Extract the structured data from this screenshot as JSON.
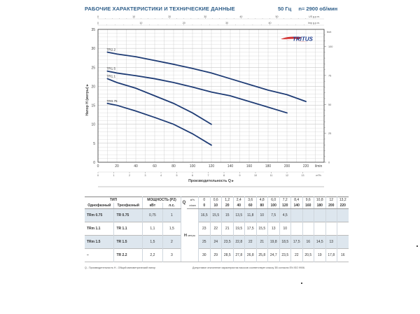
{
  "header": {
    "title": "РАБОЧИЕ ХАРАКТЕРИСТИКИ И ТЕХНИЧЕСКИЕ ДАННЫЕ",
    "frequency": "50 Гц",
    "speed": "n= 2900 об/мин"
  },
  "brand": {
    "logo_text": "TRITUS",
    "logo_color": "#1f3f8f",
    "swoosh_color": "#d32f2f"
  },
  "colors": {
    "curve": "#1f3c75",
    "title": "#2f5f8a",
    "grid": "#c8c8c8",
    "row_shade": "#dde6ee"
  },
  "axes": {
    "y_label": "Напор H (метры) ▸",
    "x_label": "Производительность Q ▸",
    "x_unit_primary": "l/min",
    "x_unit_secondary": "m³/h",
    "top_unit_us": "US g.p.m.",
    "top_unit_imp": "Imp g.p.m.",
    "right_unit": "feet",
    "y_ticks": [
      "0",
      "5",
      "10",
      "15",
      "20",
      "25",
      "30",
      "35"
    ],
    "x_ticks": [
      "0",
      "20",
      "40",
      "60",
      "80",
      "100",
      "120",
      "140",
      "160",
      "180",
      "200",
      "220"
    ],
    "m3h_ticks": [
      "0",
      "1",
      "2",
      "3",
      "4",
      "5",
      "6",
      "7",
      "8",
      "9",
      "10",
      "11",
      "12",
      "13"
    ],
    "us_gpm_ticks": [
      "0",
      "10",
      "20",
      "30",
      "40",
      "50"
    ],
    "imp_gpm_ticks": [
      "0",
      "10",
      "20",
      "30",
      "40"
    ],
    "feet_ticks": [
      "0",
      "25",
      "50",
      "75",
      "100"
    ],
    "right_bottom_tick": "0"
  },
  "chart_data": {
    "type": "line",
    "title": "РАБОЧИЕ ХАРАКТЕРИСТИКИ И ТЕХНИЧЕСКИЕ ДАННЫЕ",
    "subtitle": "50 Гц  n= 2900 об/мин",
    "xlabel": "Производительность Q (l/min)",
    "ylabel": "Напор H (метры)",
    "xlim": [
      0,
      240
    ],
    "ylim": [
      0,
      35
    ],
    "grid": true,
    "series": [
      {
        "name": "TR0.75",
        "x": [
          10,
          20,
          40,
          60,
          80,
          100,
          120
        ],
        "y": [
          15.5,
          15,
          13.5,
          11.8,
          10,
          7.5,
          4.5
        ]
      },
      {
        "name": "TR1.1",
        "x": [
          10,
          20,
          40,
          60,
          80,
          100,
          120
        ],
        "y": [
          22,
          21,
          19.5,
          17.5,
          15.5,
          13,
          10
        ]
      },
      {
        "name": "TR1.5",
        "x": [
          10,
          20,
          40,
          60,
          80,
          100,
          120,
          140,
          160,
          180,
          200
        ],
        "y": [
          24,
          23.5,
          22.8,
          22,
          21,
          19.8,
          18.5,
          17.5,
          16,
          14.5,
          13
        ]
      },
      {
        "name": "TR2.2",
        "x": [
          10,
          20,
          40,
          60,
          80,
          100,
          120,
          140,
          160,
          180,
          200,
          220
        ],
        "y": [
          29,
          28.5,
          27.8,
          26.8,
          25.8,
          24.7,
          23.5,
          22,
          20.5,
          19,
          17.8,
          16
        ]
      }
    ]
  },
  "table": {
    "header": {
      "type": "ТИП",
      "power": "МОЩНОСТЬ (P2)",
      "single_phase": "Однофазный",
      "three_phase": "Трехфазный",
      "kw": "кВт",
      "hp": "л.с.",
      "q_symbol": "Q",
      "q_unit_m3h": "м³/ч",
      "q_unit_lmin": "л/мин",
      "h_symbol": "H",
      "h_unit": "метры"
    },
    "q_m3h": [
      "0",
      "0,6",
      "1,2",
      "2,4",
      "3,6",
      "4,8",
      "6,0",
      "7,2",
      "8,4",
      "9,6",
      "10,8",
      "12",
      "13,2"
    ],
    "q_lmin": [
      "0",
      "10",
      "20",
      "40",
      "60",
      "80",
      "100",
      "120",
      "140",
      "160",
      "180",
      "200",
      "220"
    ],
    "rows": [
      {
        "single": "TRm 0.75",
        "three": "TR 0.75",
        "kw": "0,75",
        "hp": "1",
        "h": [
          "16,5",
          "15,5",
          "15",
          "13,5",
          "11,8",
          "10",
          "7,5",
          "4,5",
          "",
          "",
          "",
          "",
          ""
        ]
      },
      {
        "single": "TRm 1.1",
        "three": "TR 1.1",
        "kw": "1,1",
        "hp": "1,5",
        "h": [
          "23",
          "22",
          "21",
          "19,5",
          "17,5",
          "15,5",
          "13",
          "10",
          "",
          "",
          "",
          "",
          ""
        ]
      },
      {
        "single": "TRm 1.5",
        "three": "TR 1.5",
        "kw": "1,5",
        "hp": "2",
        "h": [
          "25",
          "24",
          "23,5",
          "22,8",
          "22",
          "21",
          "19,8",
          "18,5",
          "17,5",
          "16",
          "14,5",
          "13",
          ""
        ]
      },
      {
        "single": "–",
        "three": "TR 2.2",
        "kw": "2,2",
        "hp": "3",
        "h": [
          "30",
          "29",
          "28,5",
          "27,8",
          "26,8",
          "25,8",
          "24,7",
          "23,5",
          "22",
          "20,5",
          "19",
          "17,8",
          "16"
        ]
      }
    ]
  },
  "footer": {
    "legend": "Q - Производительность   H - Общий манометрический напор",
    "note": "Допустимое отклонение характеристик насосов соответствует классу 3B согласно EN ISO 9906."
  }
}
